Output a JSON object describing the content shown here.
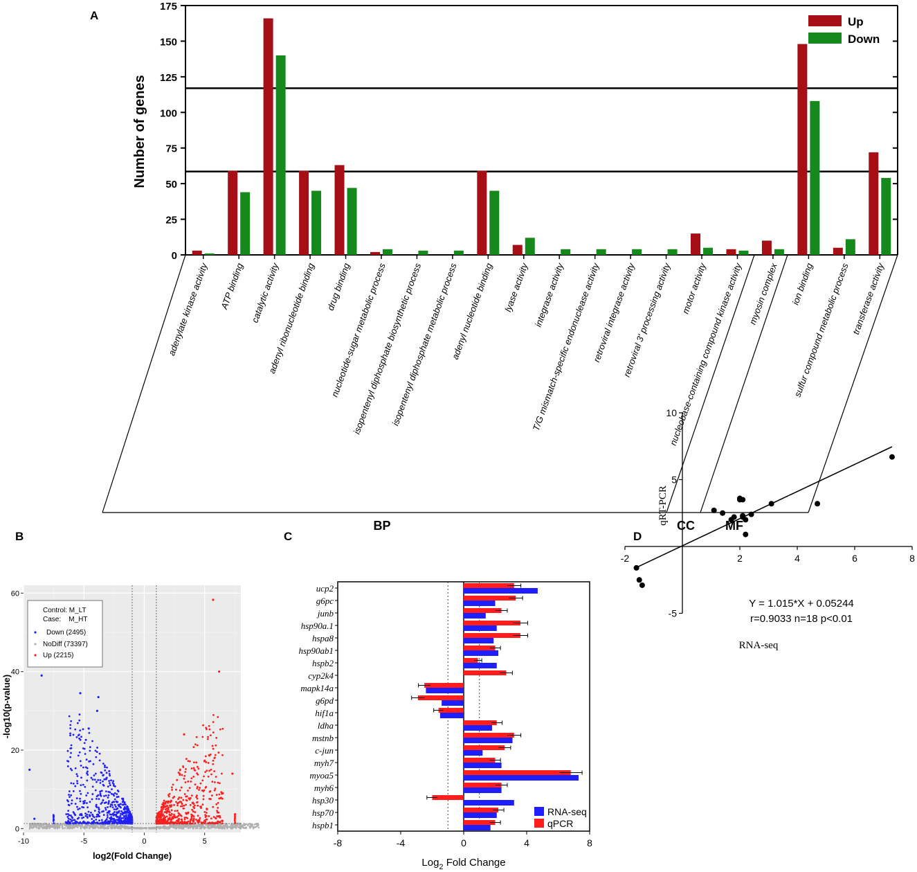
{
  "chart_data": [
    {
      "panel": "A",
      "type": "bar",
      "title": "",
      "ylabel": "Number of genes",
      "xlabel": "",
      "ylim": [
        0,
        175
      ],
      "yticks": [
        0,
        25,
        50,
        75,
        100,
        125,
        150,
        175
      ],
      "reference_lines": [
        58.5,
        117
      ],
      "categories": [
        "adenylate kinase activity",
        "ATP binding",
        "catalytic activity",
        "adenyl ribonucleotide binding",
        "drug binding",
        "nucleotide-sugar metabolic process",
        "isopentenyl diphosphate biosynthetic process",
        "isopentenyl diphosphate metabolic process",
        "adenyl nucleotide binding",
        "lyase activity",
        "integrase activity",
        "T/G mismatch-specific endonuclease activity",
        "retroviral integrase activity",
        "retroviral 3' processing activity",
        "motor activity",
        "nucleobase-containing compound kinase activity",
        "myosin complex",
        "ion binding",
        "sulfur compound metabolic process",
        "transferase activity"
      ],
      "series": [
        {
          "name": "Up",
          "color": "#a50f15",
          "values": [
            3,
            59,
            166,
            59,
            63,
            2,
            0,
            0,
            59,
            7,
            0,
            0,
            0,
            0,
            15,
            4,
            10,
            148,
            5,
            72
          ]
        },
        {
          "name": "Down",
          "color": "#16891c",
          "values": [
            1,
            44,
            140,
            45,
            47,
            4,
            3,
            3,
            45,
            12,
            4,
            4,
            4,
            4,
            5,
            3,
            4,
            108,
            11,
            54
          ]
        }
      ],
      "legend_position": "top-right",
      "groups": [
        {
          "label": "BP",
          "from": 0,
          "to": 15
        },
        {
          "label": "CC",
          "from": 16,
          "to": 16
        },
        {
          "label": "MF",
          "from": 17,
          "to": 19
        }
      ]
    },
    {
      "panel": "B",
      "type": "scatter",
      "title": "",
      "xlabel": "log2(Fold Change)",
      "ylabel": "-log10(p-value)",
      "xlim": [
        -10,
        8
      ],
      "ylim": [
        -1,
        62
      ],
      "xticks": [
        -10,
        -5,
        0,
        5
      ],
      "yticks": [
        0,
        20,
        40,
        60
      ],
      "thresholds": {
        "fold_change": [
          -1,
          1
        ],
        "p_value": 1.3
      },
      "legend": {
        "control": "Control: M_LT",
        "case": "Case:    M_HT",
        "entries": [
          {
            "label": "Down (2495)",
            "color": "#1f1fff"
          },
          {
            "label": "NoDiff (73397)",
            "color": "#b0b0b0"
          },
          {
            "label": "Up (2215)",
            "color": "#ff1f1f"
          }
        ]
      },
      "highlight_points": [
        {
          "x": -8.5,
          "y": 39
        },
        {
          "x": -9.5,
          "y": 15
        },
        {
          "x": -9.1,
          "y": 2.5
        },
        {
          "x": -5.3,
          "y": 34.5
        },
        {
          "x": -3.8,
          "y": 33.5
        },
        {
          "x": -3.9,
          "y": 30
        },
        {
          "x": -4.6,
          "y": 25.5
        },
        {
          "x": 5.7,
          "y": 58.3
        },
        {
          "x": 6.2,
          "y": 40
        },
        {
          "x": 3.3,
          "y": 24
        },
        {
          "x": 7.3,
          "y": 14
        },
        {
          "x": 6.5,
          "y": 9
        }
      ]
    },
    {
      "panel": "C",
      "type": "bar",
      "orientation": "horizontal",
      "title": "",
      "xlabel": "Log2 Fold Change",
      "xlabel_main": "Log",
      "xlabel_sub": "2",
      "xlabel_rest": " Fold Change",
      "xlim": [
        -8,
        8
      ],
      "xticks": [
        -8,
        -4,
        0,
        4,
        8
      ],
      "reference_lines": [
        -1,
        1
      ],
      "categories": [
        "ucp2",
        "g6pc",
        "junb",
        "hsp90a.1",
        "hspa8",
        "hsp90ab1",
        "hspb2",
        "cyp2k4",
        "mapk14a",
        "g6pd",
        "hif1a",
        "ldha",
        "mstnb",
        "c-jun",
        "myh7",
        "myoa5",
        "myh6",
        "hsp30",
        "hsp70",
        "hspb1"
      ],
      "series": [
        {
          "name": "RNA-seq",
          "color": "#1e1eff",
          "values": [
            4.7,
            2.0,
            1.4,
            2.1,
            1.9,
            2.2,
            2.1,
            0,
            -2.4,
            -1.4,
            -1.5,
            1.8,
            3.1,
            1.2,
            2.4,
            7.3,
            2.4,
            3.2,
            2.1,
            1.7
          ]
        },
        {
          "name": "qPCR",
          "color": "#ff1e1e",
          "values": [
            3.2,
            3.3,
            2.4,
            3.6,
            3.6,
            2.0,
            0.9,
            2.7,
            -2.5,
            -2.9,
            -1.6,
            2.1,
            3.2,
            2.6,
            2.0,
            6.8,
            2.4,
            -2.0,
            2.2,
            2.0
          ]
        }
      ],
      "legend_position": "bottom-right"
    },
    {
      "panel": "D",
      "type": "scatter",
      "title": "",
      "xlabel": "RNA-seq",
      "ylabel": "qRT-PCR",
      "xlim": [
        -2,
        8
      ],
      "ylim": [
        -5,
        10
      ],
      "xticks": [
        -2,
        2,
        4,
        6,
        8
      ],
      "yticks": [
        -5,
        5,
        10
      ],
      "annotation_line1": "Y = 1.015*X + 0.05244",
      "annotation_line2": "r=0.9033 n=18 p<0.01",
      "fit": {
        "slope": 1.015,
        "intercept": 0.05244,
        "x_range": [
          -1.6,
          7.3
        ]
      },
      "x": [
        -1.6,
        -1.5,
        -1.4,
        1.1,
        1.4,
        1.7,
        1.8,
        2.0,
        2.0,
        2.1,
        2.1,
        2.2,
        2.2,
        2.4,
        3.1,
        4.7,
        7.3,
        2.1
      ],
      "y": [
        -1.6,
        -2.5,
        -2.9,
        2.7,
        2.5,
        2.0,
        2.2,
        3.5,
        3.6,
        3.5,
        2.2,
        2.0,
        0.9,
        2.4,
        3.2,
        3.2,
        6.7,
        2.3
      ]
    }
  ],
  "panel_labels": {
    "a": "A",
    "b": "B",
    "c": "C",
    "d": "D"
  },
  "legend_a": {
    "up": "Up",
    "down": "Down"
  },
  "legend_c": {
    "rna": "RNA-seq",
    "qpcr": "qPCR"
  },
  "colors": {
    "up": "#a50f15",
    "down": "#16891c",
    "blue": "#1e1eff",
    "red": "#ff1e1e",
    "grey": "#b0b0b0"
  }
}
